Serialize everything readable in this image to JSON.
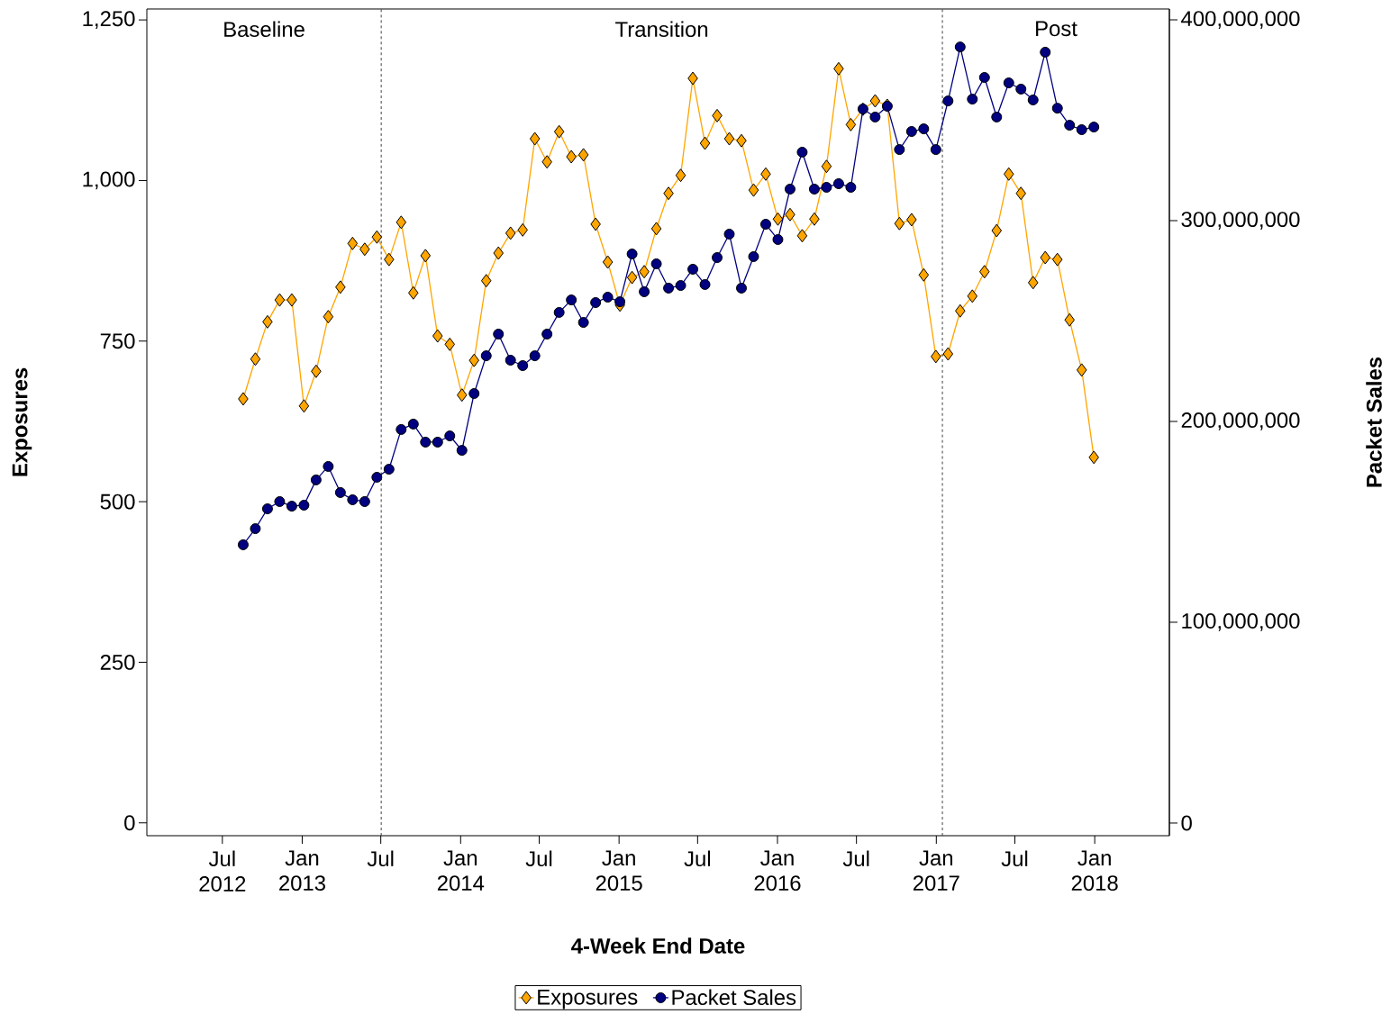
{
  "chart_data": {
    "type": "line",
    "xlabel": "4-Week End Date",
    "ylabel": "Exposures",
    "y2label": "Packet Sales",
    "x": [
      "2012-08-18",
      "2012-09-15",
      "2012-10-13",
      "2012-11-10",
      "2012-12-08",
      "2013-01-05",
      "2013-02-02",
      "2013-03-02",
      "2013-03-30",
      "2013-04-27",
      "2013-05-25",
      "2013-06-22",
      "2013-07-20",
      "2013-08-17",
      "2013-09-14",
      "2013-10-12",
      "2013-11-09",
      "2013-12-07",
      "2014-01-04",
      "2014-02-01",
      "2014-03-01",
      "2014-03-29",
      "2014-04-26",
      "2014-05-24",
      "2014-06-21",
      "2014-07-19",
      "2014-08-16",
      "2014-09-13",
      "2014-10-11",
      "2014-11-08",
      "2014-12-06",
      "2015-01-03",
      "2015-01-31",
      "2015-02-28",
      "2015-03-28",
      "2015-04-25",
      "2015-05-23",
      "2015-06-20",
      "2015-07-18",
      "2015-08-15",
      "2015-09-12",
      "2015-10-10",
      "2015-11-07",
      "2015-12-05",
      "2016-01-02",
      "2016-01-30",
      "2016-02-27",
      "2016-03-26",
      "2016-04-23",
      "2016-05-21",
      "2016-06-18",
      "2016-07-16",
      "2016-08-13",
      "2016-09-10",
      "2016-10-08",
      "2016-11-05",
      "2016-12-03",
      "2016-12-31",
      "2017-01-28",
      "2017-02-25",
      "2017-03-25",
      "2017-04-22",
      "2017-05-20",
      "2017-06-17",
      "2017-07-15",
      "2017-08-12",
      "2017-09-09",
      "2017-10-07",
      "2017-11-04",
      "2017-12-02",
      "2017-12-30"
    ],
    "series": [
      {
        "name": "Exposures",
        "color": "#ffa500",
        "marker": "diamond",
        "values": [
          660,
          722,
          780,
          814,
          814,
          649,
          703,
          788,
          834,
          902,
          893,
          912,
          877,
          935,
          825,
          883,
          758,
          745,
          666,
          720,
          844,
          887,
          918,
          923,
          1065,
          1029,
          1076,
          1037,
          1040,
          932,
          873,
          806,
          849,
          858,
          925,
          980,
          1008,
          1159,
          1058,
          1101,
          1065,
          1062,
          985,
          1010,
          940,
          947,
          914,
          940,
          1022,
          1174,
          1087,
          1111,
          1124,
          1117,
          933,
          939,
          853,
          726,
          730,
          797,
          820,
          858,
          922,
          1010,
          980,
          841,
          880,
          877,
          783,
          705,
          569
        ]
      },
      {
        "name": "Packet Sales",
        "color": "#000080",
        "marker": "circle",
        "axis": "y2",
        "values": [
          138600000,
          146600000,
          156500000,
          160100000,
          157800000,
          158300000,
          170900000,
          177600000,
          164600000,
          161000000,
          160100000,
          172200000,
          176200000,
          196000000,
          198700000,
          189700000,
          189700000,
          192800000,
          185600000,
          213900000,
          232700000,
          243500000,
          230500000,
          227800000,
          232700000,
          243500000,
          254300000,
          260500000,
          249300000,
          259200000,
          261900000,
          259600000,
          283400000,
          264600000,
          278500000,
          266400000,
          267700000,
          275800000,
          268200000,
          281600000,
          293300000,
          266400000,
          282100000,
          298200000,
          290600000,
          315700000,
          334100000,
          315700000,
          316600000,
          318400000,
          316600000,
          355600000,
          351600000,
          357000000,
          335400000,
          344400000,
          345700000,
          335400000,
          359600000,
          386500000,
          360500000,
          371300000,
          351600000,
          368600000,
          365500000,
          360100000,
          383900000,
          356000000,
          347500000,
          345300000,
          346600000
        ]
      }
    ],
    "xlim": [
      "2012-01-09",
      "2018-06-22"
    ],
    "xticks": [
      {
        "value": "2012-07-01",
        "label": "Jul 2012"
      },
      {
        "value": "2013-01-01",
        "label": "Jan 2013"
      },
      {
        "value": "2013-07-01",
        "label": "Jul"
      },
      {
        "value": "2014-01-01",
        "label": "Jan 2014"
      },
      {
        "value": "2014-07-01",
        "label": "Jul"
      },
      {
        "value": "2015-01-01",
        "label": "Jan 2015"
      },
      {
        "value": "2015-07-01",
        "label": "Jul"
      },
      {
        "value": "2016-01-01",
        "label": "Jan 2016"
      },
      {
        "value": "2016-07-01",
        "label": "Jul"
      },
      {
        "value": "2017-01-01",
        "label": "Jan 2017"
      },
      {
        "value": "2017-07-01",
        "label": "Jul"
      },
      {
        "value": "2018-01-01",
        "label": "Jan 2018"
      }
    ],
    "ylim": [
      -20,
      1267
    ],
    "yticks": [
      0,
      250,
      500,
      750,
      {
        "value": 1000,
        "label": "1,000"
      },
      {
        "value": 1250,
        "label": "1,250"
      }
    ],
    "y2lim": [
      -6300000,
      405400000
    ],
    "y2ticks": [
      0,
      {
        "value": 100000000,
        "label": "100,000,000"
      },
      {
        "value": 200000000,
        "label": "200,000,000"
      },
      {
        "value": 300000000,
        "label": "300,000,000"
      },
      {
        "value": 400000000,
        "label": "400,000,000"
      }
    ],
    "ref_lines": [
      {
        "axis": "x",
        "value": "2013-07-02",
        "color": "#404040",
        "line_style": "dashed"
      },
      {
        "axis": "x",
        "value": "2017-01-15",
        "color": "#404040",
        "line_style": "dashed"
      }
    ],
    "annotations": [
      "Baseline",
      "Transition",
      "Post"
    ],
    "grid": false,
    "legend": "bottom"
  }
}
